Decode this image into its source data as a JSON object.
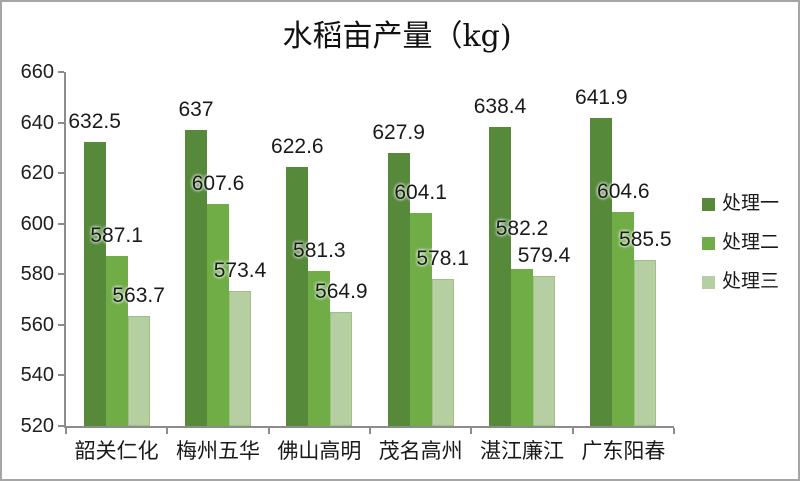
{
  "chart_data": {
    "type": "bar",
    "title": "水稻亩产量（kg)",
    "categories": [
      "韶关仁化",
      "梅州五华",
      "佛山高明",
      "茂名高州",
      "湛江廉江",
      "广东阳春"
    ],
    "series": [
      {
        "name": "处理一",
        "color": "#568A3A",
        "values": [
          632.5,
          637,
          622.6,
          627.9,
          638.4,
          641.9
        ]
      },
      {
        "name": "处理二",
        "color": "#70AD47",
        "values": [
          587.1,
          607.6,
          581.3,
          604.1,
          582.2,
          604.6
        ]
      },
      {
        "name": "处理三",
        "color": "#B6CFA2",
        "border_color": "#9CC180",
        "values": [
          563.7,
          573.4,
          564.9,
          578.1,
          579.4,
          585.5
        ]
      }
    ],
    "xlabel": "",
    "ylabel": "",
    "ylim": [
      520,
      660
    ],
    "ytick_interval": 20,
    "yticks": [
      660,
      640,
      620,
      600,
      580,
      560,
      540,
      520
    ],
    "grid": false,
    "data_labels": true,
    "legend_position": "right",
    "label_nudges": [
      {
        "series_index": 1,
        "category_index": 4,
        "dy": -20
      }
    ]
  },
  "colors": {
    "background": "#ffffff",
    "frame_border": "#a6a6a6",
    "axis_line": "#8c8c8c",
    "text": "#1a1a1a"
  }
}
